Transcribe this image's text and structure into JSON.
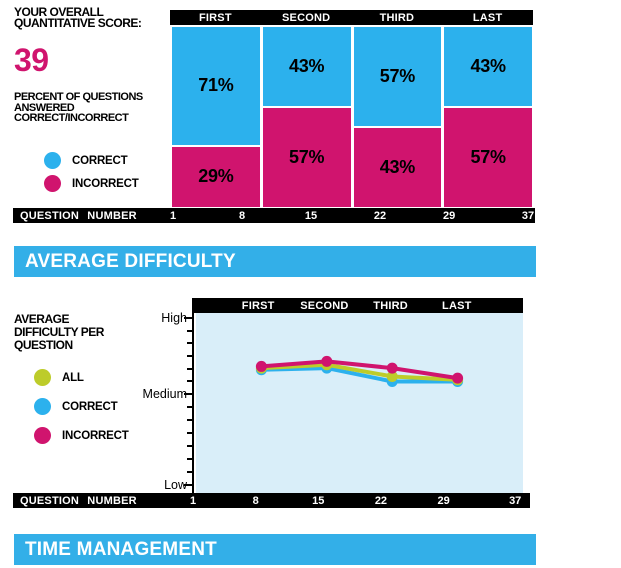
{
  "colors": {
    "blue": "#2CB1ED",
    "pink": "#D0146E",
    "green": "#BDCC2A",
    "black": "#000000",
    "white": "#FFFFFF",
    "plot_bg": "#D9EEF9",
    "banner_blue": "#33AFE8"
  },
  "banners": {
    "average_difficulty": "AVERAGE DIFFICULTY",
    "time_management": "TIME MANAGEMENT"
  },
  "score_section": {
    "title": "YOUR OVERALL\nQUANTITATIVE SCORE:",
    "score": "39",
    "subtitle": "PERCENT OF QUESTIONS\nANSWERED\nCORRECT/INCORRECT",
    "legend": [
      {
        "label": "CORRECT",
        "color_key": "blue"
      },
      {
        "label": "INCORRECT",
        "color_key": "pink"
      }
    ]
  },
  "difficulty_section": {
    "title": "AVERAGE\nDIFFICULTY PER\nQUESTION",
    "legend": [
      {
        "label": "ALL",
        "color_key": "green"
      },
      {
        "label": "CORRECT",
        "color_key": "blue"
      },
      {
        "label": "INCORRECT",
        "color_key": "pink"
      }
    ]
  },
  "chart_data": [
    {
      "type": "bar",
      "stacked": true,
      "title": "PERCENT OF QUESTIONS ANSWERED CORRECT/INCORRECT",
      "categories": [
        "FIRST",
        "SECOND",
        "THIRD",
        "LAST"
      ],
      "series": [
        {
          "name": "CORRECT",
          "color_key": "blue",
          "values": [
            71,
            43,
            57,
            43
          ]
        },
        {
          "name": "INCORRECT",
          "color_key": "pink",
          "values": [
            29,
            57,
            43,
            57
          ]
        }
      ],
      "value_suffix": "%",
      "ylim": [
        0,
        100
      ],
      "xlabel": "QUESTION NUMBER",
      "x_ticks": [
        1,
        8,
        15,
        22,
        29,
        37
      ],
      "xlim": [
        1,
        37
      ],
      "legend_position": "left",
      "grid": false
    },
    {
      "type": "line",
      "title": "AVERAGE DIFFICULTY PER QUESTION",
      "categories": [
        "FIRST",
        "SECOND",
        "THIRD",
        "LAST"
      ],
      "x_points_percent": [
        20,
        40,
        60,
        80
      ],
      "series": [
        {
          "name": "CORRECT",
          "color_key": "blue",
          "values": [
            69,
            70,
            62,
            62
          ]
        },
        {
          "name": "ALL",
          "color_key": "green",
          "values": [
            70,
            72,
            65,
            63
          ]
        },
        {
          "name": "INCORRECT",
          "color_key": "pink",
          "values": [
            71,
            74,
            70,
            64
          ]
        }
      ],
      "y_axis": {
        "top_label": "High",
        "mid_label": "Medium",
        "bottom_label": "Low",
        "min": 0,
        "max": 100,
        "mid_value": 54
      },
      "xlabel": "QUESTION NUMBER",
      "x_ticks": [
        1,
        8,
        15,
        22,
        29,
        37
      ],
      "xlim": [
        1,
        37
      ],
      "legend_position": "left",
      "grid": false
    }
  ]
}
